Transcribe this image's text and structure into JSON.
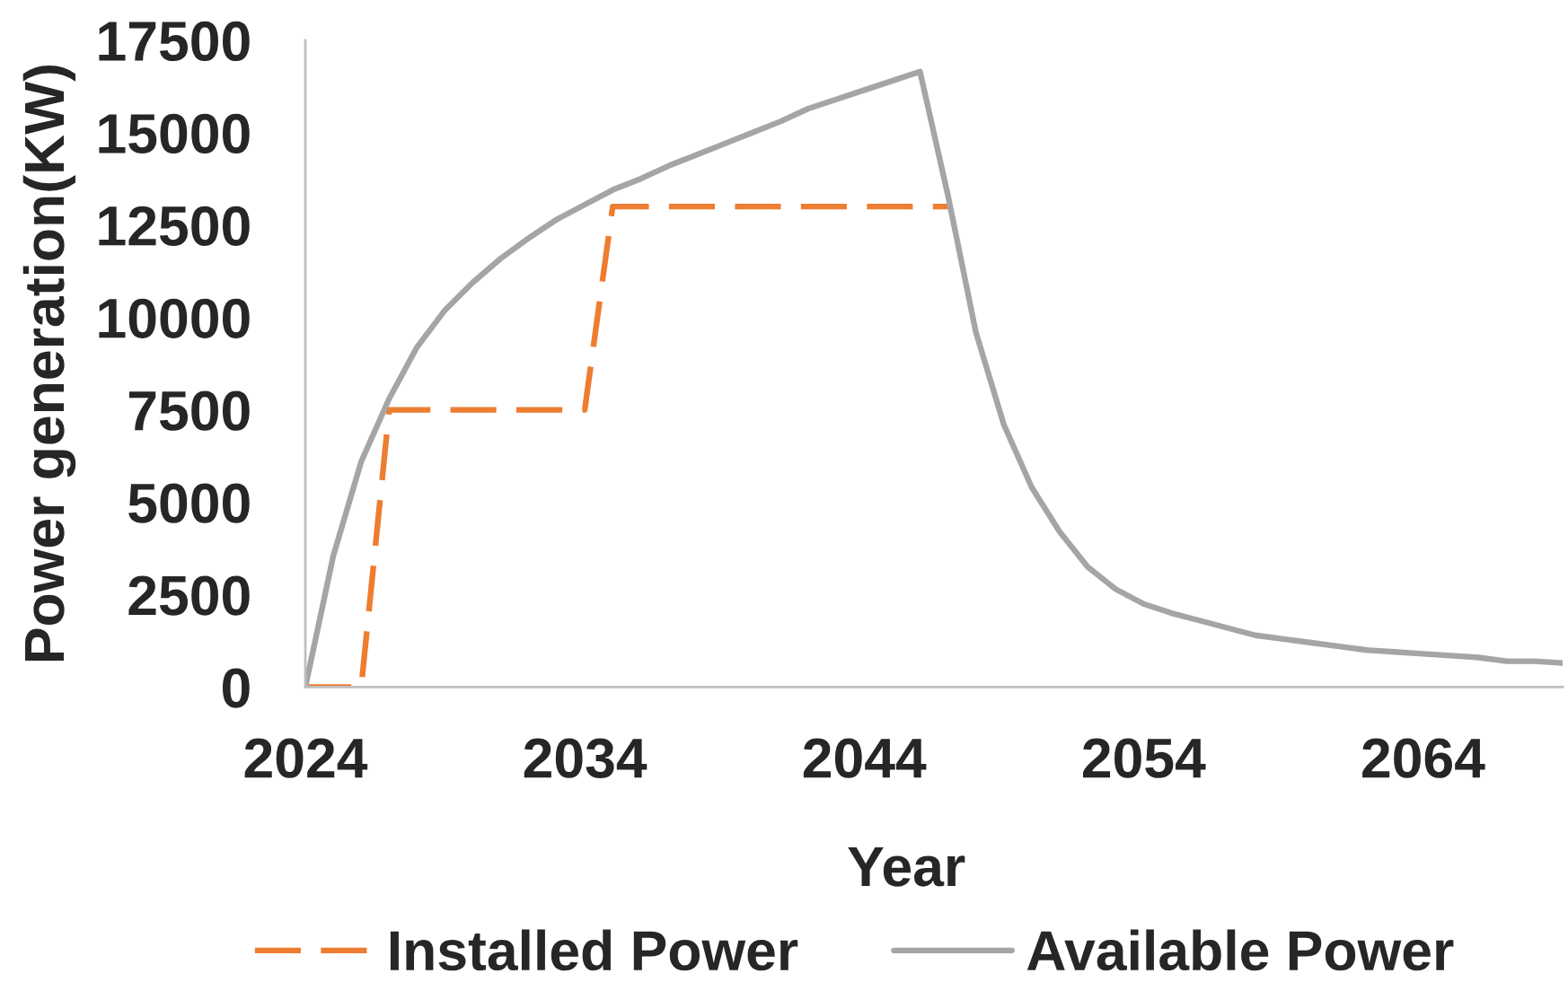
{
  "chart_data": {
    "type": "line",
    "xlabel": "Year",
    "ylabel": "Power generation(KW)",
    "xlim": [
      2024,
      2069
    ],
    "xticks": [
      2024,
      2034,
      2044,
      2054,
      2064
    ],
    "ylim": [
      0,
      17500
    ],
    "yticks": [
      0,
      2500,
      5000,
      7500,
      10000,
      12500,
      15000,
      17500
    ],
    "legend": "bottom",
    "series": [
      {
        "name": "Installed Power",
        "color": "#ed7d31",
        "line_style": "dashed",
        "x": [
          2024,
          2025,
          2026,
          2027,
          2028,
          2029,
          2030,
          2031,
          2032,
          2033,
          2034,
          2035,
          2036,
          2037,
          2038,
          2039,
          2040,
          2041,
          2042,
          2043,
          2044,
          2045,
          2046,
          2047
        ],
        "values": [
          0,
          0,
          0,
          7500,
          7500,
          7500,
          7500,
          7500,
          7500,
          7500,
          7500,
          13000,
          13000,
          13000,
          13000,
          13000,
          13000,
          13000,
          13000,
          13000,
          13000,
          13000,
          13000,
          13000
        ]
      },
      {
        "name": "Available Power",
        "color": "#a5a5a5",
        "line_style": "solid",
        "x": [
          2024,
          2025,
          2026,
          2027,
          2028,
          2029,
          2030,
          2031,
          2032,
          2033,
          2034,
          2035,
          2036,
          2037,
          2038,
          2039,
          2040,
          2041,
          2042,
          2043,
          2044,
          2045,
          2046,
          2047,
          2048,
          2049,
          2050,
          2051,
          2052,
          2053,
          2054,
          2055,
          2056,
          2057,
          2058,
          2059,
          2060,
          2061,
          2062,
          2063,
          2064,
          2065,
          2066,
          2067,
          2068,
          2069
        ],
        "values": [
          0,
          3550,
          6100,
          7800,
          9200,
          10200,
          10950,
          11600,
          12150,
          12650,
          13050,
          13450,
          13750,
          14100,
          14400,
          14700,
          15000,
          15300,
          15650,
          15900,
          16150,
          16400,
          16650,
          13300,
          9600,
          7100,
          5400,
          4200,
          3250,
          2650,
          2250,
          2000,
          1800,
          1600,
          1400,
          1300,
          1200,
          1100,
          1000,
          950,
          900,
          850,
          800,
          700,
          700,
          650
        ]
      }
    ]
  }
}
